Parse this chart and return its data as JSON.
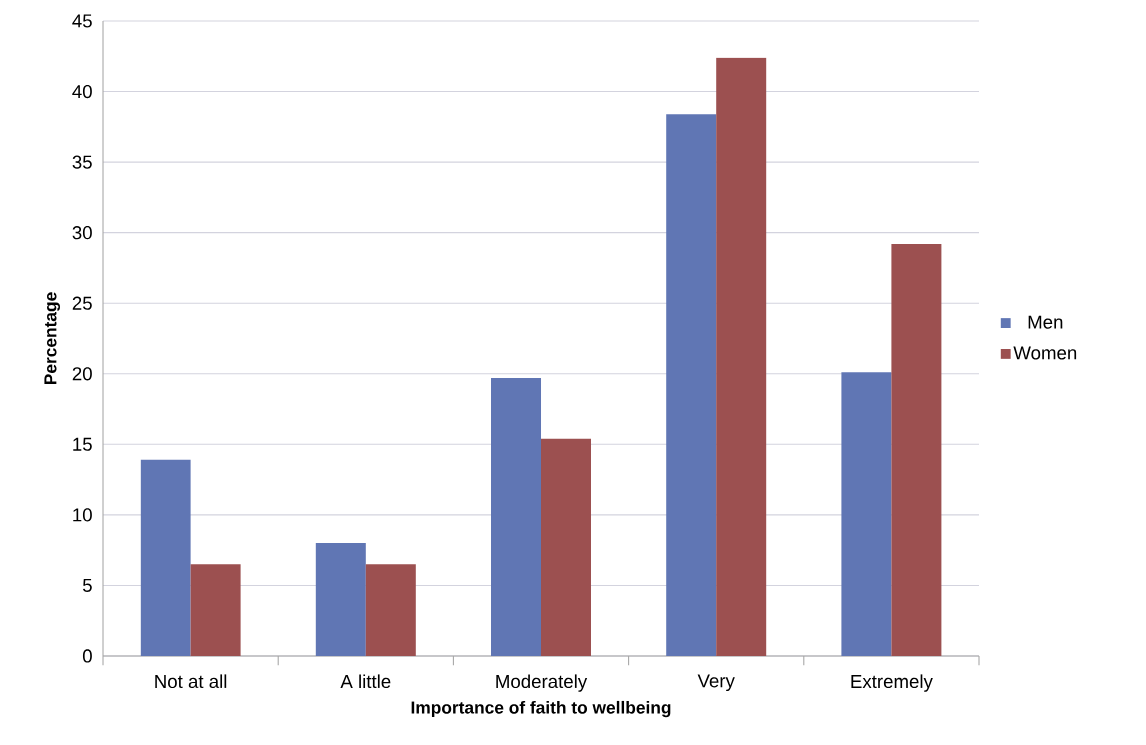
{
  "chart_data": {
    "type": "bar",
    "xlabel": "Importance of faith to wellbeing",
    "ylabel": "Percentage",
    "categories": [
      "Not at all",
      "A little",
      "Moderately",
      "Very",
      "Extremely"
    ],
    "series": [
      {
        "name": "Men",
        "color": "#6076b4",
        "values": [
          13.9,
          8.0,
          19.7,
          38.4,
          20.1
        ]
      },
      {
        "name": "Women",
        "color": "#9c5050",
        "values": [
          6.5,
          6.5,
          15.4,
          42.4,
          29.2
        ]
      }
    ],
    "ylim": [
      0,
      45
    ],
    "yticks": [
      0,
      5,
      10,
      15,
      20,
      25,
      30,
      35,
      40,
      45
    ],
    "grid": "y",
    "legend": "right"
  }
}
